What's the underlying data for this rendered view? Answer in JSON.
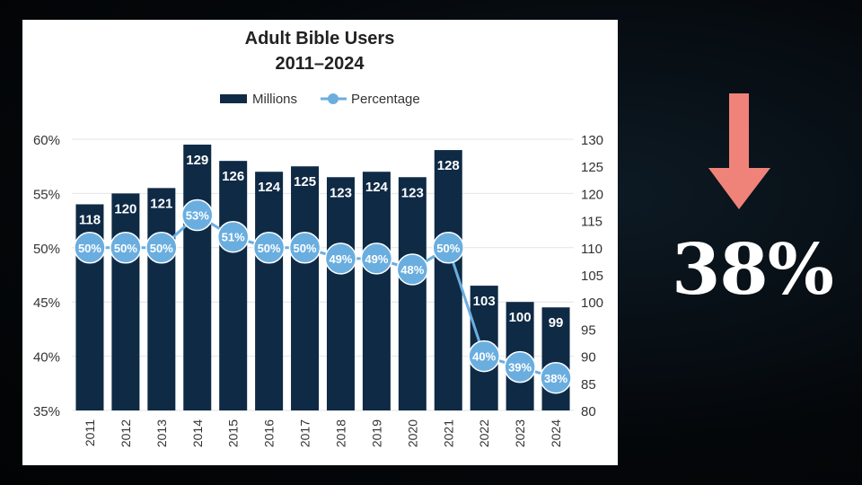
{
  "chart_data": {
    "type": "bar",
    "title": "Adult Bible Users",
    "subtitle": "2011–2024",
    "categories": [
      "2011",
      "2012",
      "2013",
      "2014",
      "2015",
      "2016",
      "2017",
      "2018",
      "2019",
      "2020",
      "2021",
      "2022",
      "2023",
      "2024"
    ],
    "series": [
      {
        "name": "Millions",
        "type": "bar",
        "axis": "right",
        "color": "#0f2a45",
        "values": [
          118,
          120,
          121,
          129,
          126,
          124,
          125,
          123,
          124,
          123,
          128,
          103,
          100,
          99
        ]
      },
      {
        "name": "Percentage",
        "type": "line",
        "axis": "left",
        "color": "#6aaee0",
        "values": [
          50,
          50,
          50,
          53,
          51,
          50,
          50,
          49,
          49,
          48,
          50,
          40,
          39,
          38
        ]
      }
    ],
    "left_axis": {
      "range": [
        35,
        60
      ],
      "ticks": [
        "35%",
        "40%",
        "45%",
        "50%",
        "55%",
        "60%"
      ]
    },
    "right_axis": {
      "range": [
        80,
        130
      ],
      "ticks": [
        "80",
        "85",
        "90",
        "95",
        "100",
        "105",
        "110",
        "115",
        "120",
        "125",
        "130"
      ]
    },
    "legend": "top-center",
    "grid": true
  },
  "callout": {
    "value": "38%",
    "arrow_color": "#f08379",
    "direction": "down"
  }
}
